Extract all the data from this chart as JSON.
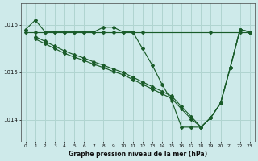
{
  "title": "Graphe pression niveau de la mer (hPa)",
  "xlim": [
    -0.5,
    23.5
  ],
  "ylim": [
    1013.55,
    1016.45
  ],
  "yticks": [
    1014,
    1015,
    1016
  ],
  "xticks": [
    0,
    1,
    2,
    3,
    4,
    5,
    6,
    7,
    8,
    9,
    10,
    11,
    12,
    13,
    14,
    15,
    16,
    17,
    18,
    19,
    20,
    21,
    22,
    23
  ],
  "bg_color": "#ceeaea",
  "grid_color": "#b0d4d0",
  "line_color": "#1a5c2a",
  "series": [
    {
      "x": [
        0,
        1,
        2,
        3,
        4,
        5,
        6,
        7,
        8,
        9,
        10,
        11,
        12,
        13,
        14,
        15,
        16,
        17,
        18,
        19,
        20,
        21,
        22,
        23
      ],
      "y": [
        1015.9,
        1016.1,
        1015.85,
        1015.85,
        1015.85,
        1015.85,
        1015.85,
        1015.85,
        1015.95,
        1015.95,
        1015.85,
        1015.85,
        1015.5,
        1015.15,
        1014.75,
        1014.4,
        1013.85,
        1013.85,
        1013.85,
        1014.05,
        1014.35,
        1015.1,
        1015.9,
        1015.85
      ]
    },
    {
      "x": [
        0,
        2,
        3,
        4,
        5,
        6,
        7,
        8,
        9,
        10,
        11,
        12,
        13,
        14,
        15,
        16,
        17,
        18,
        19,
        22
      ],
      "y": [
        1015.85,
        1015.85,
        1015.85,
        1015.85,
        1015.85,
        1015.85,
        1015.85,
        1015.85,
        1015.85,
        1015.85,
        1015.85,
        1015.85,
        1015.85,
        1015.85,
        1015.85,
        1015.85,
        1015.85,
        1015.85,
        1015.85,
        1015.85
      ]
    },
    {
      "x": [
        1,
        2,
        3,
        4,
        5,
        6,
        7,
        8,
        9,
        10,
        11,
        12,
        13,
        14,
        15,
        16,
        17,
        18,
        19,
        20,
        21,
        22,
        23
      ],
      "y": [
        1015.75,
        1015.65,
        1015.55,
        1015.48,
        1015.4,
        1015.32,
        1015.25,
        1015.17,
        1015.1,
        1015.0,
        1014.9,
        1014.8,
        1014.7,
        1014.6,
        1014.5,
        1014.3,
        1014.1,
        1013.85,
        1014.05,
        1014.35,
        1015.1,
        1015.9,
        1015.85
      ]
    },
    {
      "x": [
        1,
        2,
        3,
        4,
        5,
        6,
        7,
        8,
        9,
        10,
        11,
        12,
        13,
        14,
        15,
        16,
        17,
        18,
        19,
        20,
        21,
        22,
        23
      ],
      "y": [
        1015.7,
        1015.6,
        1015.5,
        1015.43,
        1015.35,
        1015.27,
        1015.2,
        1015.12,
        1015.05,
        1014.95,
        1014.85,
        1014.75,
        1014.65,
        1014.55,
        1014.45,
        1014.25,
        1014.05,
        1013.85,
        1014.05,
        1014.35,
        1015.1,
        1015.9,
        1015.85
      ]
    }
  ]
}
